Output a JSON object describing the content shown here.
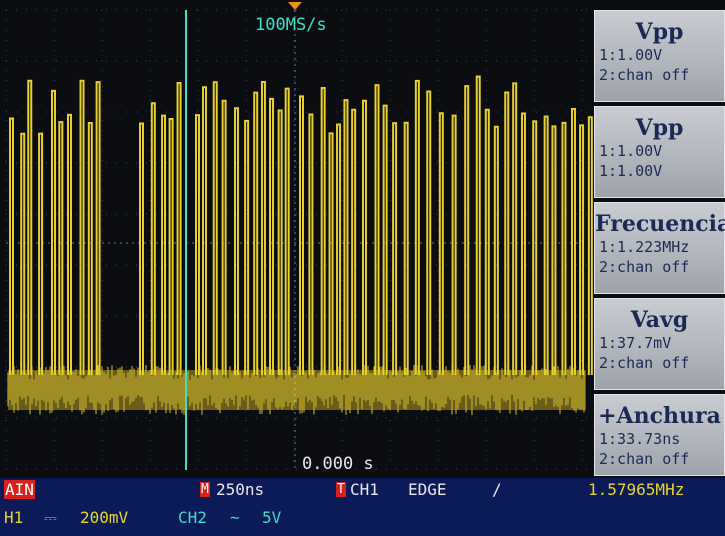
{
  "sample_rate": "100MS/s",
  "trigger_time": "0.000 s",
  "measurements": [
    {
      "title": "Vpp",
      "lines": [
        "1:1.00V",
        "2:chan off"
      ]
    },
    {
      "title": "Vpp",
      "lines": [
        "1:1.00V",
        "1:1.00V"
      ]
    },
    {
      "title": "Frecuencia",
      "lines": [
        "1:1.223MHz",
        "2:chan off"
      ]
    },
    {
      "title": "Vavg",
      "lines": [
        "1:37.7mV",
        "2:chan off"
      ]
    },
    {
      "title": "+Anchura",
      "lines": [
        "1:33.73ns",
        "2:chan off"
      ]
    }
  ],
  "status": {
    "mode": "AIN",
    "timebase_icon": "M",
    "timebase": "250ns",
    "trigger_icon": "T",
    "trigger_source": "CH1",
    "trigger_type": "EDGE",
    "trigger_slope": "/",
    "frequency": "1.57965MHz",
    "ch1_label": "H1",
    "ch1_coupling": "⎓",
    "ch1_scale": "200mV",
    "ch2_label": "CH2",
    "ch2_coupling": "~",
    "ch2_scale": "5V"
  }
}
